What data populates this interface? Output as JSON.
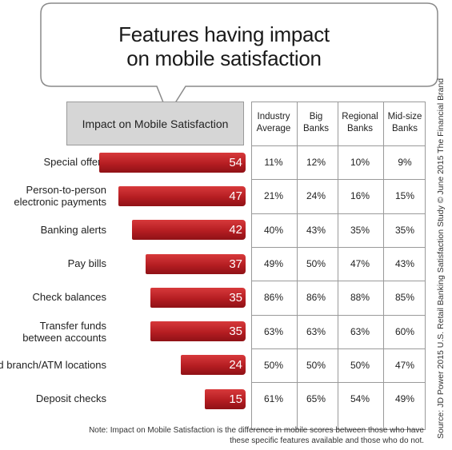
{
  "title": "Features having impact on mobile satisfaction",
  "impact_header": "Impact on Mobile Satisfaction",
  "columns": [
    {
      "line1": "Industry",
      "line2": "Average"
    },
    {
      "line1": "Big",
      "line2": "Banks"
    },
    {
      "line1": "Regional",
      "line2": "Banks"
    },
    {
      "line1": "Mid-size",
      "line2": "Banks"
    }
  ],
  "note_line1": "Note: Impact on Mobile Satisfaction is the difference in mobile scores between those who have",
  "note_line2": "these specific features available and those who do not.",
  "source": "Source: JD Power 2015 U.S. Retail Banking Satisfaction Study © June 2015 The Financial Brand",
  "colors": {
    "bar": "#b51d22",
    "header_bg": "#d6d6d6",
    "border": "#9a9a9a"
  },
  "chart_data": {
    "type": "bar",
    "orientation": "horizontal",
    "title": "Features having impact on mobile satisfaction",
    "categories": [
      {
        "line1": "Special offers",
        "line2": ""
      },
      {
        "line1": "Person-to-person",
        "line2": "electronic payments"
      },
      {
        "line1": "Banking alerts",
        "line2": ""
      },
      {
        "line1": "Pay bills",
        "line2": ""
      },
      {
        "line1": "Check balances",
        "line2": ""
      },
      {
        "line1": "Transfer funds",
        "line2": "between accounts"
      },
      {
        "line1": "Find branch/ATM locations",
        "line2": ""
      },
      {
        "line1": "Deposit checks",
        "line2": ""
      }
    ],
    "series": [
      {
        "name": "Impact on Mobile Satisfaction",
        "values": [
          54,
          47,
          42,
          37,
          35,
          35,
          24,
          15
        ]
      }
    ],
    "table": [
      [
        "11%",
        "12%",
        "10%",
        "9%"
      ],
      [
        "21%",
        "24%",
        "16%",
        "15%"
      ],
      [
        "40%",
        "43%",
        "35%",
        "35%"
      ],
      [
        "49%",
        "50%",
        "47%",
        "43%"
      ],
      [
        "86%",
        "86%",
        "88%",
        "85%"
      ],
      [
        "63%",
        "63%",
        "63%",
        "60%"
      ],
      [
        "50%",
        "50%",
        "50%",
        "47%"
      ],
      [
        "61%",
        "65%",
        "54%",
        "49%"
      ]
    ]
  }
}
